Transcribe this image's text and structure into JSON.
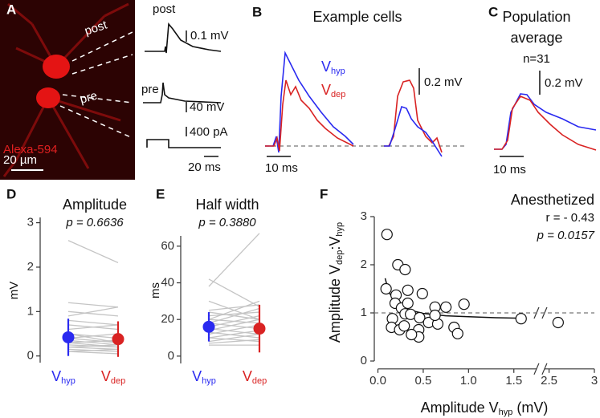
{
  "panel_a": {
    "letter": "A",
    "image_labels": [
      "post",
      "pre"
    ],
    "dye": "Alexa-594",
    "scale": "20 µm",
    "trace_labels": [
      "post",
      "pre"
    ],
    "scales": [
      "0.1 mV",
      "40 mV",
      "400 pA",
      "20 ms"
    ]
  },
  "panel_b": {
    "letter": "B",
    "title": "Example cells",
    "legend": [
      {
        "base": "V",
        "sub": "hyp",
        "color": "#2a2af0"
      },
      {
        "base": "V",
        "sub": "dep",
        "color": "#d92323"
      }
    ],
    "scales": [
      "0.2 mV",
      "10 ms"
    ]
  },
  "panel_c": {
    "letter": "C",
    "title": [
      "Population",
      "average"
    ],
    "n": "n=31",
    "scales": [
      "0.2 mV",
      "10 ms"
    ]
  },
  "chart_data": [
    {
      "type": "paired",
      "letter": "D",
      "title": "Amplitude",
      "stat": "p = 0.6636",
      "ylabel": "mV",
      "ylim": [
        -0.15,
        3.3
      ],
      "yticks": [
        0,
        1,
        2,
        3
      ],
      "categories": [
        {
          "base": "V",
          "sub": "hyp",
          "color": "#2a2af0"
        },
        {
          "base": "V",
          "sub": "dep",
          "color": "#d92323"
        }
      ],
      "pair_color": "#c4c4c4",
      "pairs": [
        [
          2.6,
          2.1
        ],
        [
          1.2,
          1.1
        ],
        [
          1.0,
          0.9
        ],
        [
          0.9,
          1.1
        ],
        [
          0.8,
          0.7
        ],
        [
          0.7,
          0.6
        ],
        [
          0.6,
          0.7
        ],
        [
          0.5,
          0.4
        ],
        [
          0.5,
          0.3
        ],
        [
          0.4,
          0.5
        ],
        [
          0.4,
          0.3
        ],
        [
          0.35,
          0.25
        ],
        [
          0.3,
          0.2
        ],
        [
          0.3,
          0.35
        ],
        [
          0.25,
          0.2
        ],
        [
          0.2,
          0.25
        ],
        [
          0.2,
          0.15
        ],
        [
          0.15,
          0.1
        ],
        [
          0.1,
          0.15
        ],
        [
          0.1,
          0.05
        ]
      ],
      "means": [
        0.42,
        0.38
      ],
      "errors": [
        0.42,
        0.4
      ]
    },
    {
      "type": "paired",
      "letter": "E",
      "title": "Half width",
      "stat": "p = 0.3880",
      "ylabel": "ms",
      "ylim": [
        -4,
        70
      ],
      "yticks": [
        0,
        20,
        40,
        60
      ],
      "categories": [
        {
          "base": "V",
          "sub": "hyp",
          "color": "#2a2af0"
        },
        {
          "base": "V",
          "sub": "dep",
          "color": "#d92323"
        }
      ],
      "pair_color": "#c4c4c4",
      "pairs": [
        [
          38,
          67
        ],
        [
          42,
          27
        ],
        [
          30,
          20
        ],
        [
          25,
          28
        ],
        [
          22,
          24
        ],
        [
          20,
          18
        ],
        [
          18,
          26
        ],
        [
          18,
          15
        ],
        [
          16,
          22
        ],
        [
          15,
          12
        ],
        [
          14,
          20
        ],
        [
          13,
          10
        ],
        [
          12,
          17
        ],
        [
          10,
          14
        ],
        [
          10,
          8
        ],
        [
          8,
          12
        ],
        [
          7,
          9
        ],
        [
          6,
          6
        ],
        [
          20,
          30
        ],
        [
          24,
          20
        ]
      ],
      "means": [
        16,
        15
      ],
      "errors": [
        8,
        13
      ]
    },
    {
      "type": "scatter",
      "letter": "F",
      "title": "Anesthetized",
      "stat_r": "r =  - 0.43",
      "stat_p": "p = 0.0157",
      "xlabel": {
        "pre": "Amplitude V",
        "sub": "hyp",
        "post": " (mV)"
      },
      "ylabel": {
        "pre": "Amplitude V",
        "sub": "dep",
        "mid": ":V",
        "sub2": "hyp"
      },
      "xlim": [
        -0.04,
        3
      ],
      "xbreak": [
        1.75,
        2.45
      ],
      "xticks": [
        {
          "value": 0,
          "label": "0.0"
        },
        0.5,
        {
          "value": 1,
          "label": "1.0"
        },
        1.5,
        2.5,
        3
      ],
      "ylim": [
        -0.13,
        3.2
      ],
      "yticks": [
        0,
        1,
        2,
        3
      ],
      "hline": 1,
      "x": [
        0.1,
        0.22,
        0.3,
        0.09,
        0.2,
        0.19,
        0.26,
        0.33,
        0.33,
        0.49,
        0.63,
        0.75,
        0.95,
        0.3,
        0.36,
        0.16,
        0.46,
        0.56,
        0.66,
        0.84,
        0.15,
        0.24,
        0.45,
        0.45,
        0.37,
        0.88,
        0.29,
        0.63,
        1.58,
        2.6
      ],
      "y": [
        2.63,
        2.0,
        1.9,
        1.5,
        1.37,
        1.2,
        1.1,
        1.47,
        1.2,
        1.4,
        1.12,
        1.12,
        1.18,
        0.98,
        0.97,
        0.88,
        0.9,
        0.8,
        0.77,
        0.7,
        0.7,
        0.65,
        0.65,
        0.5,
        0.55,
        0.57,
        0.73,
        0.95,
        0.88,
        0.8
      ],
      "fit": {
        "x": [
          0.08,
          0.12,
          0.2,
          0.3,
          0.5,
          0.75,
          1.0,
          1.3,
          1.6
        ],
        "y": [
          1.72,
          1.43,
          1.2,
          1.08,
          0.99,
          0.94,
          0.92,
          0.9,
          0.89
        ]
      }
    }
  ]
}
